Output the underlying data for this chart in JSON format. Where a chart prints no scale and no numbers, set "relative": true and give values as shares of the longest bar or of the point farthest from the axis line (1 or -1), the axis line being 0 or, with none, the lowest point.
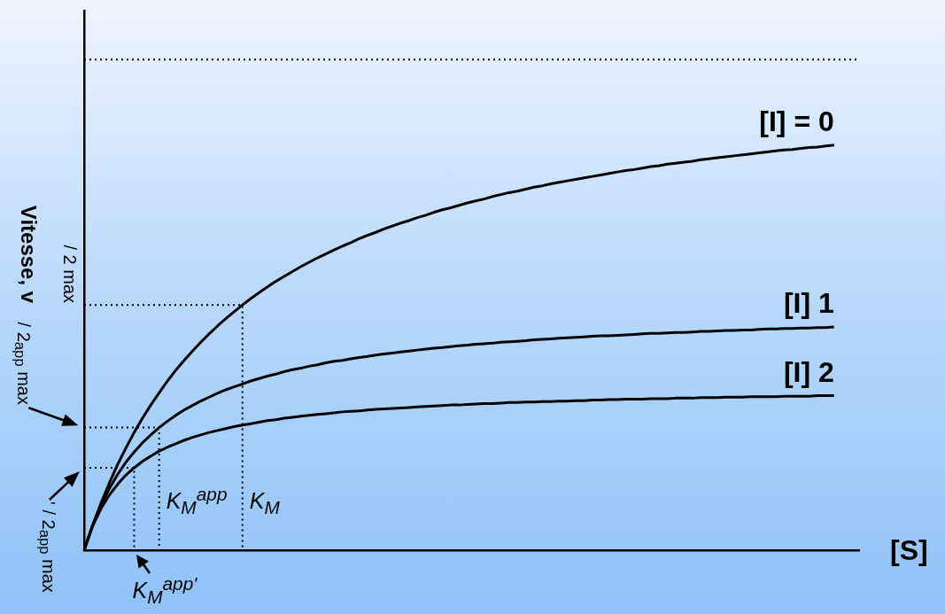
{
  "chart_data": {
    "type": "line",
    "relative": true,
    "xlabel": "[S]",
    "ylabel": "Vitesse, v",
    "categories": [
      null,
      null,
      null,
      null,
      null,
      null,
      null,
      null,
      null,
      null,
      null,
      null,
      null,
      null,
      null,
      null,
      null,
      null,
      null,
      null,
      null,
      null,
      null,
      null,
      null,
      null,
      null,
      null,
      null,
      null,
      null,
      null,
      null,
      null,
      null,
      null,
      null,
      null,
      null,
      null,
      null,
      null,
      null,
      null,
      null,
      null,
      null,
      null,
      null,
      null,
      null,
      null,
      null,
      null,
      null,
      null,
      null,
      null,
      null,
      null,
      null,
      null,
      null,
      null,
      null,
      null,
      null,
      null,
      null,
      null,
      null,
      null,
      null,
      null,
      null,
      null,
      null,
      null,
      null,
      null,
      null,
      null,
      null,
      null,
      null,
      null,
      null,
      null,
      null,
      null,
      null,
      null,
      null,
      null
    ],
    "series": [
      {
        "name": "[I] = 0",
        "color": "#000000",
        "values": [
          0,
          0.05,
          0.095,
          0.136,
          0.174,
          0.208,
          0.24,
          0.269,
          0.296,
          0.321,
          0.345,
          0.367,
          0.387,
          0.406,
          0.424,
          0.441,
          0.457,
          0.472,
          0.486,
          0.5,
          0.513,
          0.525,
          0.537,
          0.548,
          0.558,
          0.568,
          0.578,
          0.587,
          0.596,
          0.604,
          0.612,
          0.62,
          0.627,
          0.635,
          0.642,
          0.648,
          0.655,
          0.661,
          0.667,
          0.672,
          0.678,
          0.683,
          0.689,
          0.694,
          0.698,
          0.703,
          0.708,
          0.712,
          0.716,
          0.721,
          0.725,
          0.729,
          0.732,
          0.736,
          0.74,
          0.743,
          0.747,
          0.75,
          0.753,
          0.756,
          0.759,
          0.762,
          0.765,
          0.768,
          0.771,
          0.774,
          0.776,
          0.779,
          0.782,
          0.784,
          0.787,
          0.789,
          0.791,
          0.793,
          0.796,
          0.798,
          0.8,
          0.802,
          0.804,
          0.806,
          0.808,
          0.81,
          0.812,
          0.814,
          0.816,
          0.817,
          0.819,
          0.821,
          0.822,
          0.824,
          0.826,
          null,
          null,
          null
        ]
      },
      {
        "name": "[I] 1",
        "color": "#000000",
        "values": [
          0,
          0.05,
          0.091,
          0.125,
          0.154,
          0.179,
          0.2,
          0.219,
          0.235,
          0.25,
          0.263,
          0.275,
          0.286,
          0.295,
          0.304,
          0.312,
          0.32,
          0.327,
          0.333,
          0.339,
          0.345,
          0.35,
          0.355,
          0.359,
          0.364,
          0.368,
          0.371,
          0.375,
          0.378,
          0.382,
          0.385,
          0.387,
          0.39,
          0.393,
          0.395,
          0.398,
          0.4,
          0.402,
          0.404,
          0.406,
          0.408,
          0.41,
          0.412,
          0.413,
          0.415,
          0.417,
          0.418,
          0.42,
          0.421,
          0.422,
          0.424,
          0.425,
          0.426,
          0.427,
          0.429,
          0.43,
          0.431,
          0.432,
          0.433,
          0.434,
          0.435,
          0.436,
          0.437,
          0.437,
          0.438,
          0.439,
          0.44,
          0.441,
          0.442,
          0.442,
          0.443,
          0.444,
          0.444,
          0.445,
          0.446,
          0.446,
          0.447,
          0.448,
          0.448,
          0.449,
          0.449,
          0.45,
          0.451,
          0.451,
          0.452,
          0.452,
          0.453,
          0.453,
          0.454,
          0.454,
          0.455,
          null,
          null,
          null
        ]
      },
      {
        "name": "[I] 2",
        "color": "#000000",
        "values": [
          0,
          0.048,
          0.084,
          0.112,
          0.134,
          0.153,
          0.168,
          0.181,
          0.192,
          0.202,
          0.21,
          0.217,
          0.224,
          0.23,
          0.235,
          0.24,
          0.244,
          0.248,
          0.252,
          0.255,
          0.258,
          0.261,
          0.264,
          0.266,
          0.269,
          0.271,
          0.273,
          0.275,
          0.277,
          0.278,
          0.28,
          0.282,
          0.283,
          0.284,
          0.286,
          0.287,
          0.288,
          0.289,
          0.29,
          0.291,
          0.292,
          0.293,
          0.294,
          0.295,
          0.296,
          0.296,
          0.297,
          0.298,
          0.299,
          0.299,
          0.3,
          0.301,
          0.301,
          0.302,
          0.302,
          0.303,
          0.303,
          0.304,
          0.304,
          0.305,
          0.305,
          0.306,
          0.306,
          0.307,
          0.307,
          0.308,
          0.308,
          0.308,
          0.309,
          0.309,
          0.309,
          0.31,
          0.31,
          0.31,
          0.311,
          0.311,
          0.311,
          0.312,
          0.312,
          0.312,
          0.313,
          0.313,
          0.313,
          0.313,
          0.314,
          0.314,
          0.314,
          0.314,
          0.315,
          0.315,
          0.315,
          null,
          null,
          null
        ]
      },
      {
        "color": "#000000",
        "line_style": "dotted",
        "values": [
          1,
          1,
          1,
          1,
          1,
          1,
          1,
          1,
          1,
          1,
          1,
          1,
          1,
          1,
          1,
          1,
          1,
          1,
          1,
          1,
          1,
          1,
          1,
          1,
          1,
          1,
          1,
          1,
          1,
          1,
          1,
          1,
          1,
          1,
          1,
          1,
          1,
          1,
          1,
          1,
          1,
          1,
          1,
          1,
          1,
          1,
          1,
          1,
          1,
          1,
          1,
          1,
          1,
          1,
          1,
          1,
          1,
          1,
          1,
          1,
          1,
          1,
          1,
          1,
          1,
          1,
          1,
          1,
          1,
          1,
          1,
          1,
          1,
          1,
          1,
          1,
          1,
          1,
          1,
          1,
          1,
          1,
          1,
          1,
          1,
          1,
          1,
          1,
          1,
          1,
          1,
          1,
          1,
          1
        ]
      },
      {
        "name": "K$_{M}$",
        "type": "step",
        "color": "#000000",
        "line_style": "dotted",
        "values": [
          0.5,
          0.5,
          0.5,
          0.5,
          0.5,
          0.5,
          0.5,
          0.5,
          0.5,
          0.5,
          0.5,
          0.5,
          0.5,
          0.5,
          0.5,
          0.5,
          0.5,
          0.5,
          0.5,
          0,
          null,
          null,
          null,
          null,
          null,
          null,
          null,
          null,
          null,
          null,
          null,
          null,
          null,
          null,
          null,
          null,
          null,
          null,
          null,
          null,
          null,
          null,
          null,
          null,
          null,
          null,
          null,
          null,
          null,
          null,
          null,
          null,
          null,
          null,
          null,
          null,
          null,
          null,
          null,
          null,
          null,
          null,
          null,
          null,
          null,
          null,
          null,
          null,
          null,
          null,
          null,
          null,
          null,
          null,
          null,
          null,
          null,
          null,
          null,
          null,
          null,
          null,
          null,
          null,
          null,
          null,
          null,
          null,
          null,
          null,
          null,
          null,
          null,
          null
        ]
      },
      {
        "name": "K$_{M}$$^{app}$",
        "type": "step",
        "color": "#000000",
        "line_style": "dotted",
        "values": [
          0.25,
          0.25,
          0.25,
          0.25,
          0.25,
          0.25,
          0.25,
          0.25,
          0.25,
          0,
          null,
          null,
          null,
          null,
          null,
          null,
          null,
          null,
          null,
          null,
          null,
          null,
          null,
          null,
          null,
          null,
          null,
          null,
          null,
          null,
          null,
          null,
          null,
          null,
          null,
          null,
          null,
          null,
          null,
          null,
          null,
          null,
          null,
          null,
          null,
          null,
          null,
          null,
          null,
          null,
          null,
          null,
          null,
          null,
          null,
          null,
          null,
          null,
          null,
          null,
          null,
          null,
          null,
          null,
          null,
          null,
          null,
          null,
          null,
          null,
          null,
          null,
          null,
          null,
          null,
          null,
          null,
          null,
          null,
          null,
          null,
          null,
          null,
          null,
          null,
          null,
          null,
          null,
          null,
          null,
          null,
          null,
          null,
          null
        ]
      },
      {
        "name": "K$_{M}$$^{app'}$",
        "type": "step",
        "color": "#000000",
        "line_style": "dotted",
        "values": [
          0.168,
          0.168,
          0.168,
          0.168,
          0.168,
          0.168,
          0,
          null,
          null,
          null,
          null,
          null,
          null,
          null,
          null,
          null,
          null,
          null,
          null,
          null,
          null,
          null,
          null,
          null,
          null,
          null,
          null,
          null,
          null,
          null,
          null,
          null,
          null,
          null,
          null,
          null,
          null,
          null,
          null,
          null,
          null,
          null,
          null,
          null,
          null,
          null,
          null,
          null,
          null,
          null,
          null,
          null,
          null,
          null,
          null,
          null,
          null,
          null,
          null,
          null,
          null,
          null,
          null,
          null,
          null,
          null,
          null,
          null,
          null,
          null,
          null,
          null,
          null,
          null,
          null,
          null,
          null,
          null,
          null,
          null,
          null,
          null,
          null,
          null,
          null,
          null,
          null,
          null,
          null,
          null,
          null,
          null,
          null,
          null
        ]
      }
    ],
    "annotations": [
      "/ 2 max",
      "/ 2$_{app}$ max",
      "' / 2$_{app}$ max"
    ]
  }
}
